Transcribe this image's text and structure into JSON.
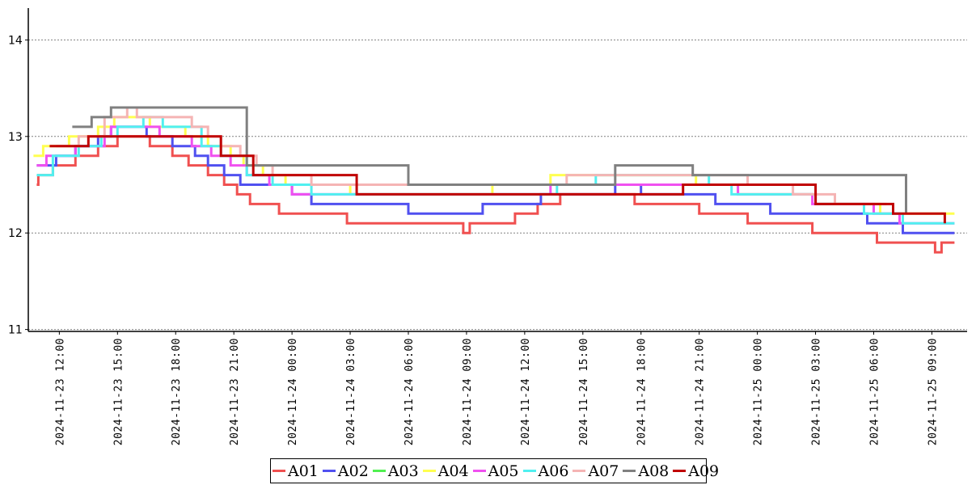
{
  "chart_data": {
    "type": "line",
    "title": "",
    "xlabel": "",
    "ylabel": "",
    "ylim": [
      10.98,
      14.33
    ],
    "xlim": [
      "2024-11-23 10:24",
      "2024-11-25 10:49"
    ],
    "grid": "horizontal dotted",
    "legend_position": "bottom-center",
    "y_ticks": [
      "11",
      "12",
      "13",
      "14"
    ],
    "x_ticks": [
      "2024-11-23 12:00",
      "2024-11-23 15:00",
      "2024-11-23 18:00",
      "2024-11-23 21:00",
      "2024-11-24 00:00",
      "2024-11-24 03:00",
      "2024-11-24 06:00",
      "2024-11-24 09:00",
      "2024-11-24 12:00",
      "2024-11-24 15:00",
      "2024-11-24 18:00",
      "2024-11-24 21:00",
      "2024-11-25 00:00",
      "2024-11-25 03:00",
      "2024-11-25 06:00",
      "2024-11-25 09:00"
    ],
    "series": [
      {
        "name": "A01",
        "color": "#f05050",
        "points": [
          [
            "2024-11-23 10:50",
            12.5
          ],
          [
            "2024-11-23 10:55",
            12.6
          ],
          [
            "2024-11-23 11:40",
            12.7
          ],
          [
            "2024-11-23 12:50",
            12.8
          ],
          [
            "2024-11-23 14:00",
            12.9
          ],
          [
            "2024-11-23 15:00",
            13.0
          ],
          [
            "2024-11-23 16:40",
            12.9
          ],
          [
            "2024-11-23 17:50",
            12.8
          ],
          [
            "2024-11-23 18:40",
            12.7
          ],
          [
            "2024-11-23 19:40",
            12.6
          ],
          [
            "2024-11-23 20:30",
            12.5
          ],
          [
            "2024-11-23 21:10",
            12.4
          ],
          [
            "2024-11-23 21:50",
            12.3
          ],
          [
            "2024-11-23 23:20",
            12.2
          ],
          [
            "2024-11-24 02:50",
            12.1
          ],
          [
            "2024-11-24 08:50",
            12.0
          ],
          [
            "2024-11-24 09:10",
            12.1
          ],
          [
            "2024-11-24 11:30",
            12.2
          ],
          [
            "2024-11-24 12:40",
            12.3
          ],
          [
            "2024-11-24 13:50",
            12.4
          ],
          [
            "2024-11-24 17:40",
            12.3
          ],
          [
            "2024-11-24 21:00",
            12.2
          ],
          [
            "2024-11-24 23:30",
            12.1
          ],
          [
            "2024-11-25 02:50",
            12.0
          ],
          [
            "2024-11-25 06:10",
            11.9
          ],
          [
            "2024-11-25 09:10",
            11.8
          ],
          [
            "2024-11-25 09:30",
            11.9
          ],
          [
            "2024-11-25 10:10",
            11.9
          ]
        ]
      },
      {
        "name": "A02",
        "color": "#5050f0",
        "points": [
          [
            "2024-11-23 10:50",
            12.7
          ],
          [
            "2024-11-23 11:50",
            12.8
          ],
          [
            "2024-11-23 12:50",
            12.9
          ],
          [
            "2024-11-23 14:00",
            13.0
          ],
          [
            "2024-11-23 14:40",
            13.1
          ],
          [
            "2024-11-23 15:50",
            13.1
          ],
          [
            "2024-11-23 16:30",
            13.0
          ],
          [
            "2024-11-23 17:50",
            12.9
          ],
          [
            "2024-11-23 19:00",
            12.8
          ],
          [
            "2024-11-23 19:40",
            12.7
          ],
          [
            "2024-11-23 20:30",
            12.6
          ],
          [
            "2024-11-23 21:20",
            12.5
          ],
          [
            "2024-11-24 00:00",
            12.4
          ],
          [
            "2024-11-24 00:30",
            12.4
          ],
          [
            "2024-11-24 01:00",
            12.3
          ],
          [
            "2024-11-24 06:00",
            12.2
          ],
          [
            "2024-11-24 09:50",
            12.3
          ],
          [
            "2024-11-24 12:50",
            12.4
          ],
          [
            "2024-11-24 16:40",
            12.5
          ],
          [
            "2024-11-24 18:00",
            12.4
          ],
          [
            "2024-11-24 21:50",
            12.3
          ],
          [
            "2024-11-25 00:40",
            12.2
          ],
          [
            "2024-11-25 05:40",
            12.1
          ],
          [
            "2024-11-25 07:30",
            12.0
          ],
          [
            "2024-11-25 10:10",
            12.0
          ]
        ]
      },
      {
        "name": "A03",
        "color": "#50f050",
        "points": []
      },
      {
        "name": "A04",
        "color": "#ffff50",
        "points": [
          [
            "2024-11-23 10:40",
            12.8
          ],
          [
            "2024-11-23 11:10",
            12.9
          ],
          [
            "2024-11-23 12:30",
            13.0
          ],
          [
            "2024-11-23 14:00",
            13.1
          ],
          [
            "2024-11-23 14:50",
            13.2
          ],
          [
            "2024-11-23 16:40",
            13.1
          ],
          [
            "2024-11-23 18:30",
            13.0
          ],
          [
            "2024-11-23 19:40",
            12.9
          ],
          [
            "2024-11-23 20:50",
            12.8
          ],
          [
            "2024-11-23 21:30",
            12.7
          ],
          [
            "2024-11-23 22:30",
            12.6
          ],
          [
            "2024-11-23 23:40",
            12.5
          ],
          [
            "2024-11-24 03:00",
            12.4
          ],
          [
            "2024-11-24 10:20",
            12.5
          ],
          [
            "2024-11-24 13:20",
            12.6
          ],
          [
            "2024-11-24 20:50",
            12.5
          ],
          [
            "2024-11-24 23:00",
            12.4
          ],
          [
            "2024-11-25 03:00",
            12.3
          ],
          [
            "2024-11-25 06:20",
            12.2
          ],
          [
            "2024-11-25 10:10",
            12.2
          ]
        ]
      },
      {
        "name": "A05",
        "color": "#f050f0",
        "points": [
          [
            "2024-11-23 10:50",
            12.7
          ],
          [
            "2024-11-23 11:20",
            12.8
          ],
          [
            "2024-11-23 12:50",
            12.9
          ],
          [
            "2024-11-23 14:20",
            13.0
          ],
          [
            "2024-11-23 14:40",
            13.1
          ],
          [
            "2024-11-23 16:10",
            13.1
          ],
          [
            "2024-11-23 17:10",
            13.0
          ],
          [
            "2024-11-23 18:50",
            12.9
          ],
          [
            "2024-11-23 19:50",
            12.8
          ],
          [
            "2024-11-23 20:50",
            12.7
          ],
          [
            "2024-11-23 21:40",
            12.6
          ],
          [
            "2024-11-23 22:50",
            12.5
          ],
          [
            "2024-11-24 00:00",
            12.4
          ],
          [
            "2024-11-24 09:20",
            12.4
          ],
          [
            "2024-11-24 13:20",
            12.5
          ],
          [
            "2024-11-24 23:00",
            12.4
          ],
          [
            "2024-11-25 02:50",
            12.3
          ],
          [
            "2024-11-25 06:00",
            12.2
          ],
          [
            "2024-11-25 07:20",
            12.1
          ],
          [
            "2024-11-25 10:10",
            12.1
          ]
        ]
      },
      {
        "name": "A06",
        "color": "#50f0f0",
        "points": [
          [
            "2024-11-23 10:50",
            12.6
          ],
          [
            "2024-11-23 11:40",
            12.8
          ],
          [
            "2024-11-23 13:00",
            12.9
          ],
          [
            "2024-11-23 14:10",
            13.0
          ],
          [
            "2024-11-23 15:00",
            13.1
          ],
          [
            "2024-11-23 16:20",
            13.2
          ],
          [
            "2024-11-23 17:20",
            13.1
          ],
          [
            "2024-11-23 19:20",
            12.9
          ],
          [
            "2024-11-23 20:20",
            12.8
          ],
          [
            "2024-11-23 21:40",
            12.6
          ],
          [
            "2024-11-23 23:00",
            12.5
          ],
          [
            "2024-11-24 01:00",
            12.4
          ],
          [
            "2024-11-24 06:40",
            12.4
          ],
          [
            "2024-11-24 13:40",
            12.5
          ],
          [
            "2024-11-24 15:40",
            12.6
          ],
          [
            "2024-11-24 21:30",
            12.5
          ],
          [
            "2024-11-24 22:40",
            12.4
          ],
          [
            "2024-11-25 03:00",
            12.3
          ],
          [
            "2024-11-25 05:30",
            12.2
          ],
          [
            "2024-11-25 07:30",
            12.1
          ],
          [
            "2024-11-25 10:10",
            12.1
          ]
        ]
      },
      {
        "name": "A07",
        "color": "#f5b4b4",
        "points": [
          [
            "2024-11-23 11:50",
            12.9
          ],
          [
            "2024-11-23 13:00",
            13.0
          ],
          [
            "2024-11-23 14:20",
            13.2
          ],
          [
            "2024-11-23 15:30",
            13.3
          ],
          [
            "2024-11-23 16:00",
            13.2
          ],
          [
            "2024-11-23 18:50",
            13.1
          ],
          [
            "2024-11-23 19:40",
            13.0
          ],
          [
            "2024-11-23 20:20",
            12.9
          ],
          [
            "2024-11-23 21:20",
            12.8
          ],
          [
            "2024-11-23 22:10",
            12.7
          ],
          [
            "2024-11-23 23:00",
            12.6
          ],
          [
            "2024-11-24 01:00",
            12.5
          ],
          [
            "2024-11-24 05:30",
            12.5
          ],
          [
            "2024-11-24 09:10",
            12.5
          ],
          [
            "2024-11-24 14:10",
            12.6
          ],
          [
            "2024-11-24 21:00",
            12.6
          ],
          [
            "2024-11-24 23:30",
            12.5
          ],
          [
            "2024-11-25 01:50",
            12.4
          ],
          [
            "2024-11-25 04:00",
            12.3
          ],
          [
            "2024-11-25 06:40",
            12.3
          ]
        ]
      },
      {
        "name": "A08",
        "color": "#808080",
        "points": [
          [
            "2024-11-23 12:40",
            13.1
          ],
          [
            "2024-11-23 13:40",
            13.2
          ],
          [
            "2024-11-23 14:40",
            13.3
          ],
          [
            "2024-11-23 21:40",
            12.7
          ],
          [
            "2024-11-24 06:00",
            12.5
          ],
          [
            "2024-11-24 16:40",
            12.7
          ],
          [
            "2024-11-24 20:40",
            12.6
          ],
          [
            "2024-11-25 07:40",
            12.2
          ]
        ]
      },
      {
        "name": "A09",
        "color": "#c00000",
        "points": [
          [
            "2024-11-23 11:30",
            12.9
          ],
          [
            "2024-11-23 13:30",
            13.0
          ],
          [
            "2024-11-23 15:00",
            13.0
          ],
          [
            "2024-11-23 16:20",
            13.0
          ],
          [
            "2024-11-23 20:20",
            12.8
          ],
          [
            "2024-11-23 22:00",
            12.6
          ],
          [
            "2024-11-24 03:20",
            12.4
          ],
          [
            "2024-11-24 11:20",
            12.4
          ],
          [
            "2024-11-24 20:10",
            12.5
          ],
          [
            "2024-11-25 03:00",
            12.3
          ],
          [
            "2024-11-25 07:00",
            12.2
          ],
          [
            "2024-11-25 09:40",
            12.1
          ]
        ]
      }
    ]
  }
}
